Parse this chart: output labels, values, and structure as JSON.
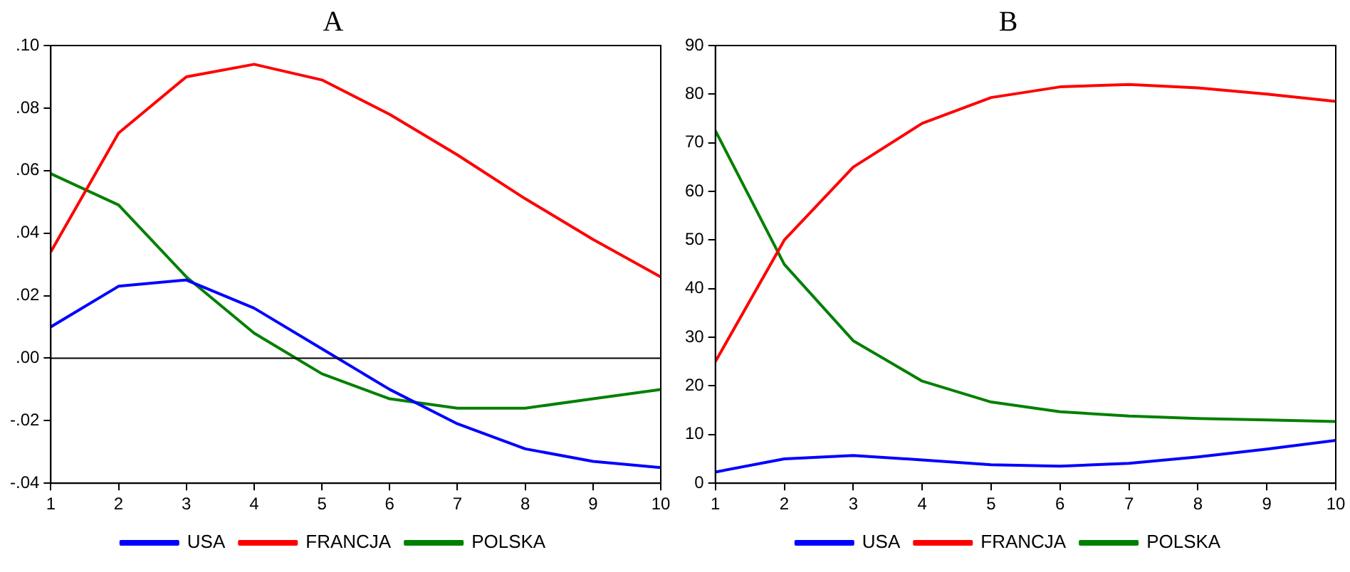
{
  "chart_data": [
    {
      "type": "line",
      "title": "A",
      "x": [
        1,
        2,
        3,
        4,
        5,
        6,
        7,
        8,
        9,
        10
      ],
      "xlim": [
        1,
        10
      ],
      "xticks": [
        1,
        2,
        3,
        4,
        5,
        6,
        7,
        8,
        9,
        10
      ],
      "ylim": [
        -0.04,
        0.1
      ],
      "yticks": [
        {
          "value": -0.04,
          "label": "-.04"
        },
        {
          "value": -0.02,
          "label": "-.02"
        },
        {
          "value": 0,
          "label": ".00"
        },
        {
          "value": 0.02,
          "label": ".02"
        },
        {
          "value": 0.04,
          "label": ".04"
        },
        {
          "value": 0.06,
          "label": ".06"
        },
        {
          "value": 0.08,
          "label": ".08"
        },
        {
          "value": 0.1,
          "label": ".10"
        }
      ],
      "grid": false,
      "legend": "bottom",
      "marker": "none",
      "line_style": "solid",
      "ref_lines": [
        {
          "axis": "y",
          "value": 0,
          "color": "#000000"
        }
      ],
      "series": [
        {
          "name": "USA",
          "color": "#0000ff",
          "values": [
            0.01,
            0.023,
            0.025,
            0.016,
            0.003,
            -0.01,
            -0.021,
            -0.029,
            -0.033,
            -0.035
          ]
        },
        {
          "name": "FRANCJA",
          "color": "#ff0000",
          "values": [
            0.034,
            0.072,
            0.09,
            0.094,
            0.089,
            0.078,
            0.065,
            0.051,
            0.038,
            0.026
          ]
        },
        {
          "name": "POLSKA",
          "color": "#008000",
          "values": [
            0.059,
            0.049,
            0.026,
            0.008,
            -0.005,
            -0.013,
            -0.016,
            -0.016,
            -0.013,
            -0.01
          ]
        }
      ]
    },
    {
      "type": "line",
      "title": "B",
      "x": [
        1,
        2,
        3,
        4,
        5,
        6,
        7,
        8,
        9,
        10
      ],
      "xlim": [
        1,
        10
      ],
      "xticks": [
        1,
        2,
        3,
        4,
        5,
        6,
        7,
        8,
        9,
        10
      ],
      "ylim": [
        0,
        90
      ],
      "yticks": [
        0,
        10,
        20,
        30,
        40,
        50,
        60,
        70,
        80,
        90
      ],
      "grid": false,
      "legend": "bottom",
      "marker": "none",
      "line_style": "solid",
      "series": [
        {
          "name": "USA",
          "color": "#0000ff",
          "values": [
            2.3,
            5,
            5.7,
            4.8,
            3.8,
            3.5,
            4.1,
            5.4,
            7,
            8.8
          ]
        },
        {
          "name": "FRANCJA",
          "color": "#ff0000",
          "values": [
            25,
            50,
            65,
            74,
            79.3,
            81.5,
            82,
            81.3,
            80,
            78.5
          ]
        },
        {
          "name": "POLSKA",
          "color": "#008000",
          "values": [
            72.5,
            45,
            29.3,
            21,
            16.7,
            14.7,
            13.8,
            13.3,
            13,
            12.7
          ]
        }
      ]
    }
  ]
}
